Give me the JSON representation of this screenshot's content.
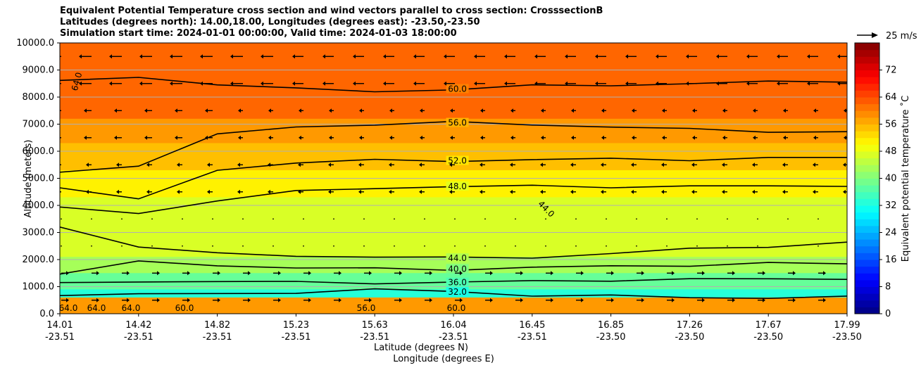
{
  "title_lines": [
    "Equivalent Potential Temperature cross section and wind vectors parallel to cross section: CrosssectionB",
    "Latitudes (degrees north): 14.00,18.00, Longitudes (degrees east): -23.50,-23.50",
    "Simulation start time: 2024-01-01 00:00:00, Valid time: 2024-01-03 18:00:00"
  ],
  "chart_data": {
    "type": "heatmap",
    "title": "Equivalent Potential Temperature cross section and wind vectors parallel to cross section: CrosssectionB",
    "ylabel": "Altitude (meters)",
    "xlabel_lines": [
      "Latitude (degrees N)",
      "Longitude (degrees E)"
    ],
    "ylim": [
      0,
      10000
    ],
    "y_ticks": [
      "0.0",
      "1000.0",
      "2000.0",
      "3000.0",
      "4000.0",
      "5000.0",
      "6000.0",
      "7000.0",
      "8000.0",
      "9000.0",
      "10000.0"
    ],
    "x_ticks": [
      {
        "lat": "14.01",
        "lon": "-23.51"
      },
      {
        "lat": "14.42",
        "lon": "-23.51"
      },
      {
        "lat": "14.82",
        "lon": "-23.51"
      },
      {
        "lat": "15.23",
        "lon": "-23.51"
      },
      {
        "lat": "15.63",
        "lon": "-23.51"
      },
      {
        "lat": "16.04",
        "lon": "-23.51"
      },
      {
        "lat": "16.45",
        "lon": "-23.51"
      },
      {
        "lat": "16.85",
        "lon": "-23.50"
      },
      {
        "lat": "17.26",
        "lon": "-23.50"
      },
      {
        "lat": "17.67",
        "lon": "-23.50"
      },
      {
        "lat": "17.99",
        "lon": "-23.50"
      }
    ],
    "colorbar": {
      "label": "Equivalent potential temperature $^\\circ$C",
      "label_display": "Equivalent potential temperature ˚C",
      "min": 0,
      "max": 80,
      "ticks": [
        "0",
        "8",
        "16",
        "24",
        "32",
        "40",
        "48",
        "56",
        "64",
        "72"
      ]
    },
    "quiver_key": "25 m/s",
    "layers": [
      {
        "top": 10000,
        "value": 62
      },
      {
        "top": 7200,
        "value": 58
      },
      {
        "top": 6300,
        "value": 55
      },
      {
        "top": 5300,
        "value": 51
      },
      {
        "top": 4300,
        "value": 47
      },
      {
        "top": 2100,
        "value": 43
      },
      {
        "top": 1500,
        "value": 38
      },
      {
        "top": 900,
        "value": 33
      },
      {
        "top": 600,
        "value": 58
      }
    ],
    "contours": [
      {
        "value": 60.0,
        "label": "60.0",
        "alt": [
          8600,
          8700,
          8500,
          8300,
          8200,
          8300,
          8400,
          8450,
          8500,
          8550,
          8600
        ]
      },
      {
        "value": 56.0,
        "label": "56.0",
        "alt": [
          5200,
          5500,
          6600,
          6900,
          7000,
          7050,
          7000,
          6900,
          6800,
          6750,
          6700
        ]
      },
      {
        "value": 52.0,
        "label": "52.0",
        "alt": [
          4700,
          4200,
          5300,
          5600,
          5650,
          5650,
          5700,
          5700,
          5700,
          5750,
          5750
        ]
      },
      {
        "value": 48.0,
        "label": "48.0",
        "alt": [
          3900,
          3700,
          4200,
          4500,
          4650,
          4700,
          4700,
          4700,
          4700,
          4700,
          4750
        ]
      },
      {
        "value": 44.0,
        "label": "44.0",
        "alt": [
          3200,
          2500,
          2200,
          2150,
          2100,
          2050,
          2100,
          2200,
          2400,
          2500,
          2600
        ]
      },
      {
        "value": 40.0,
        "label": "40.0",
        "alt": [
          1500,
          1900,
          1800,
          1700,
          1650,
          1650,
          1700,
          1750,
          1800,
          1850,
          1850
        ]
      },
      {
        "value": 36.0,
        "label": "36.0",
        "alt": [
          1100,
          1200,
          1200,
          1150,
          1150,
          1150,
          1200,
          1250,
          1250,
          1300,
          1300
        ]
      },
      {
        "value": 32.0,
        "label": "32.0",
        "alt": [
          700,
          750,
          700,
          800,
          900,
          800,
          700,
          650,
          600,
          600,
          600
        ]
      }
    ],
    "upper_label": "64.0",
    "mid_right_label": "44.0",
    "surface_labels": [
      "64.0",
      "64.0",
      "64.0",
      "60.0",
      "56.0",
      "60.0"
    ]
  }
}
